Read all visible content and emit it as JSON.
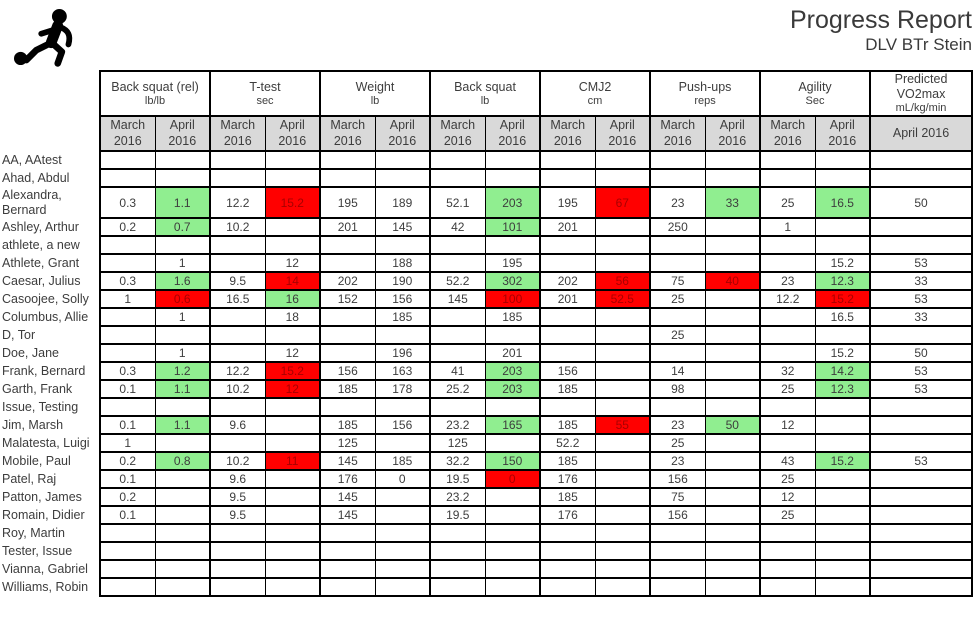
{
  "header": {
    "title": "Progress Report",
    "subtitle": "DLV BTr Stein",
    "logo_icon": "soccer-player-kicking-ball-icon"
  },
  "colors": {
    "highlight_green": "#90EE90",
    "highlight_red": "#FF0000",
    "red_cell_text": "#A80000",
    "month_header_gray": "#D9D9D9",
    "border_black": "#000000",
    "text_gray": "#3D3D3D"
  },
  "table": {
    "metric_groups": [
      {
        "label": "Back squat (rel)",
        "unit": "lb/lb",
        "months": [
          "March 2016",
          "April 2016"
        ]
      },
      {
        "label": "T-test",
        "unit": "sec",
        "months": [
          "March 2016",
          "April 2016"
        ]
      },
      {
        "label": "Weight",
        "unit": "lb",
        "months": [
          "March 2016",
          "April 2016"
        ]
      },
      {
        "label": "Back squat",
        "unit": "lb",
        "months": [
          "March 2016",
          "April 2016"
        ]
      },
      {
        "label": "CMJ2",
        "unit": "cm",
        "months": [
          "March 2016",
          "April 2016"
        ]
      },
      {
        "label": "Push-ups",
        "unit": "reps",
        "months": [
          "March 2016",
          "April 2016"
        ]
      },
      {
        "label": "Agility",
        "unit": "Sec",
        "months": [
          "March 2016",
          "April 2016"
        ]
      },
      {
        "label": "Predicted VO2max",
        "unit": "mL/kg/min",
        "months": [
          "April 2016"
        ]
      }
    ],
    "rows": [
      {
        "name": "AA, AAtest",
        "cells": [
          "",
          "",
          "",
          "",
          "",
          "",
          "",
          "",
          "",
          "",
          "",
          "",
          "",
          "",
          ""
        ]
      },
      {
        "name": "Ahad, Abdul",
        "cells": [
          "",
          "",
          "",
          "",
          "",
          "",
          "",
          "",
          "",
          "",
          "",
          "",
          "",
          "",
          ""
        ]
      },
      {
        "name": "Alexandra, Bernard",
        "cells": [
          "0.3",
          "1.1",
          "12.2",
          "15.2",
          "195",
          "189",
          "52.1",
          "203",
          "195",
          "67",
          "23",
          "33",
          "25",
          "16.5",
          "50"
        ],
        "hl": {
          "1": "g",
          "3": "r",
          "7": "g",
          "9": "r",
          "11": "g",
          "13": "g"
        }
      },
      {
        "name": "Ashley, Arthur",
        "cells": [
          "0.2",
          "0.7",
          "10.2",
          "",
          "201",
          "145",
          "42",
          "101",
          "201",
          "",
          "250",
          "",
          "1",
          "",
          ""
        ],
        "hl": {
          "1": "g",
          "7": "g"
        }
      },
      {
        "name": "athlete, a new",
        "cells": [
          "",
          "",
          "",
          "",
          "",
          "",
          "",
          "",
          "",
          "",
          "",
          "",
          "",
          "",
          ""
        ]
      },
      {
        "name": "Athlete, Grant",
        "cells": [
          "",
          "1",
          "",
          "12",
          "",
          "188",
          "",
          "195",
          "",
          "",
          "",
          "",
          "",
          "15.2",
          "53"
        ]
      },
      {
        "name": "Caesar, Julius",
        "cells": [
          "0.3",
          "1.6",
          "9.5",
          "14",
          "202",
          "190",
          "52.2",
          "302",
          "202",
          "56",
          "75",
          "40",
          "23",
          "12.3",
          "33"
        ],
        "hl": {
          "1": "g",
          "3": "r",
          "7": "g",
          "9": "r",
          "11": "r",
          "13": "g"
        }
      },
      {
        "name": "Casoojee, Solly",
        "cells": [
          "1",
          "0.6",
          "16.5",
          "16",
          "152",
          "156",
          "145",
          "100",
          "201",
          "52.5",
          "25",
          "",
          "12.2",
          "15.2",
          "53"
        ],
        "hl": {
          "1": "r",
          "3": "g",
          "7": "r",
          "9": "r",
          "13": "r"
        }
      },
      {
        "name": "Columbus, Allie",
        "cells": [
          "",
          "1",
          "",
          "18",
          "",
          "185",
          "",
          "185",
          "",
          "",
          "",
          "",
          "",
          "16.5",
          "33"
        ]
      },
      {
        "name": "D, Tor",
        "cells": [
          "",
          "",
          "",
          "",
          "",
          "",
          "",
          "",
          "",
          "",
          "25",
          "",
          "",
          "",
          ""
        ]
      },
      {
        "name": "Doe, Jane",
        "cells": [
          "",
          "1",
          "",
          "12",
          "",
          "196",
          "",
          "201",
          "",
          "",
          "",
          "",
          "",
          "15.2",
          "50"
        ]
      },
      {
        "name": "Frank, Bernard",
        "cells": [
          "0.3",
          "1.2",
          "12.2",
          "15.2",
          "156",
          "163",
          "41",
          "203",
          "156",
          "",
          "14",
          "",
          "32",
          "14.2",
          "53"
        ],
        "hl": {
          "1": "g",
          "3": "r",
          "7": "g",
          "13": "g"
        }
      },
      {
        "name": "Garth, Frank",
        "cells": [
          "0.1",
          "1.1",
          "10.2",
          "12",
          "185",
          "178",
          "25.2",
          "203",
          "185",
          "",
          "98",
          "",
          "25",
          "12.3",
          "53"
        ],
        "hl": {
          "1": "g",
          "3": "r",
          "7": "g",
          "13": "g"
        }
      },
      {
        "name": "Issue, Testing",
        "cells": [
          "",
          "",
          "",
          "",
          "",
          "",
          "",
          "",
          "",
          "",
          "",
          "",
          "",
          "",
          ""
        ]
      },
      {
        "name": "Jim, Marsh",
        "cells": [
          "0.1",
          "1.1",
          "9.6",
          "",
          "185",
          "156",
          "23.2",
          "165",
          "185",
          "55",
          "23",
          "50",
          "12",
          "",
          ""
        ],
        "hl": {
          "1": "g",
          "7": "g",
          "9": "r",
          "11": "g"
        }
      },
      {
        "name": "Malatesta, Luigi",
        "cells": [
          "1",
          "",
          "",
          "",
          "125",
          "",
          "125",
          "",
          "52.2",
          "",
          "25",
          "",
          "",
          "",
          ""
        ]
      },
      {
        "name": "Mobile, Paul",
        "cells": [
          "0.2",
          "0.8",
          "10.2",
          "11",
          "145",
          "185",
          "32.2",
          "150",
          "185",
          "",
          "23",
          "",
          "43",
          "15.2",
          "53"
        ],
        "hl": {
          "1": "g",
          "3": "r",
          "7": "g",
          "13": "g"
        }
      },
      {
        "name": "Patel, Raj",
        "cells": [
          "0.1",
          "",
          "9.6",
          "",
          "176",
          "0",
          "19.5",
          "0",
          "176",
          "",
          "156",
          "",
          "25",
          "",
          ""
        ],
        "hl": {
          "7": "r"
        }
      },
      {
        "name": "Patton, James",
        "cells": [
          "0.2",
          "",
          "9.5",
          "",
          "145",
          "",
          "23.2",
          "",
          "185",
          "",
          "75",
          "",
          "12",
          "",
          ""
        ]
      },
      {
        "name": "Romain, Didier",
        "cells": [
          "0.1",
          "",
          "9.5",
          "",
          "145",
          "",
          "19.5",
          "",
          "176",
          "",
          "156",
          "",
          "25",
          "",
          ""
        ]
      },
      {
        "name": "Roy, Martin",
        "cells": [
          "",
          "",
          "",
          "",
          "",
          "",
          "",
          "",
          "",
          "",
          "",
          "",
          "",
          "",
          ""
        ]
      },
      {
        "name": "Tester, Issue",
        "cells": [
          "",
          "",
          "",
          "",
          "",
          "",
          "",
          "",
          "",
          "",
          "",
          "",
          "",
          "",
          ""
        ]
      },
      {
        "name": "Vianna, Gabriel",
        "cells": [
          "",
          "",
          "",
          "",
          "",
          "",
          "",
          "",
          "",
          "",
          "",
          "",
          "",
          "",
          ""
        ]
      },
      {
        "name": "Williams, Robin",
        "cells": [
          "",
          "",
          "",
          "",
          "",
          "",
          "",
          "",
          "",
          "",
          "",
          "",
          "",
          "",
          ""
        ]
      }
    ]
  }
}
